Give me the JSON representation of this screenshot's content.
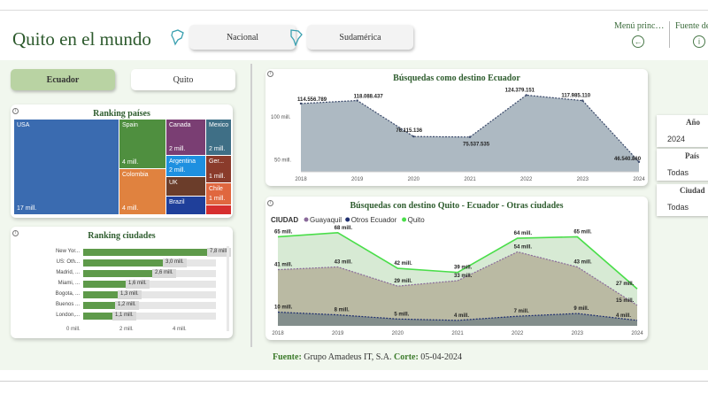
{
  "header": {
    "title": "Quito en el mundo",
    "nav_nacional": "Nacional",
    "nav_sudamerica": "Sudamérica",
    "menu_principal": "Menú princ…",
    "fuente_link": "Fuente de",
    "icons": [
      "ecuador-map-icon",
      "southamerica-map-icon",
      "back-arrow-icon",
      "info-icon"
    ]
  },
  "toggles": {
    "ecuador": "Ecuador",
    "quito": "Quito"
  },
  "ranking_paises": {
    "title": "Ranking países",
    "items": [
      {
        "label": "USA",
        "value": "17 mill.",
        "color": "#3a6bb0"
      },
      {
        "label": "Spain",
        "value": "4 mill.",
        "color": "#4f8f3f"
      },
      {
        "label": "Colombia",
        "value": "4 mill.",
        "color": "#e0823f"
      },
      {
        "label": "Canada",
        "value": "2 mill.",
        "color": "#7a3e73"
      },
      {
        "label": "Mexico",
        "value": "2 mill.",
        "color": "#3f6f86"
      },
      {
        "label": "Argentina",
        "value": "2 mill.",
        "color": "#1e90e0"
      },
      {
        "label": "Ger...",
        "value": "1 mill.",
        "color": "#8a3b2b"
      },
      {
        "label": "UK",
        "value": "",
        "color": "#6b3d2a"
      },
      {
        "label": "Chile",
        "value": "1 mill.",
        "color": "#e0673f"
      },
      {
        "label": "Brazil",
        "value": "",
        "color": "#1f3f9a"
      },
      {
        "label": "",
        "value": "",
        "color": "#d62f2f"
      }
    ]
  },
  "ranking_ciudades": {
    "title": "Ranking ciudades",
    "rows": [
      {
        "name": "New Yor...",
        "value": 7.8,
        "label": "7,8 mill."
      },
      {
        "name": "US: Oth...",
        "value": 3.0,
        "label": "3,0 mill."
      },
      {
        "name": "Madrid, ...",
        "value": 2.6,
        "label": "2,6 mill."
      },
      {
        "name": "Miami, ...",
        "value": 1.6,
        "label": "1,6 mill."
      },
      {
        "name": "Bogota, ...",
        "value": 1.3,
        "label": "1,3 mill."
      },
      {
        "name": "Buenos ...",
        "value": 1.2,
        "label": "1,2 mill."
      },
      {
        "name": "London,...",
        "value": 1.1,
        "label": "1,1 mill."
      }
    ],
    "axis_ticks": [
      "0 mill.",
      "2 mill.",
      "4 mill."
    ]
  },
  "slicers": {
    "anio_label": "Año",
    "anio_value": "2024",
    "pais_label": "País",
    "pais_value": "Todas",
    "ciudad_label": "Ciudad",
    "ciudad_value": "Todas"
  },
  "footer": {
    "fuente_label": "Fuente:",
    "fuente_value": "Grupo Amadeus IT, S.A.",
    "corte_label": "Corte:",
    "corte_value": "05-04-2024"
  },
  "chart_data": [
    {
      "type": "area",
      "title": "Búsquedas como destino Ecuador",
      "x": [
        "2018",
        "2019",
        "2020",
        "2021",
        "2022",
        "2023",
        "2024"
      ],
      "values": [
        114556789,
        118088437,
        76115136,
        75537535,
        124379151,
        117985110,
        46540860
      ],
      "data_labels": [
        "114.556.789",
        "118.088.437",
        "76.115.136",
        "75.537.535",
        "124.379.151",
        "117.985.110",
        "46.540.860"
      ],
      "y_ticks": [
        "100 mill.",
        "50 mill."
      ],
      "ylim": [
        35000000,
        130000000
      ],
      "color": "#a9b5bf"
    },
    {
      "type": "area",
      "title": "Búsquedas con destino Quito - Ecuador - Otras ciudades",
      "legend_title": "CIUDAD",
      "x": [
        "2018",
        "2019",
        "2020",
        "2021",
        "2022",
        "2023",
        "2024"
      ],
      "series": [
        {
          "name": "Quito",
          "color": "#4ade4a",
          "values": [
            65,
            68,
            42,
            39,
            64,
            65,
            27
          ],
          "labels": [
            "65 mill.",
            "68 mill.",
            "42 mill.",
            "39 mill.",
            "64 mill.",
            "65 mill.",
            "27 mill."
          ]
        },
        {
          "name": "Guayaquil",
          "color": "#8a6a9a",
          "values": [
            41,
            43,
            29,
            33,
            54,
            43,
            15
          ],
          "labels": [
            "41 mill.",
            "43 mill.",
            "29 mill.",
            "33 mill.",
            "54 mill.",
            "43 mill.",
            "15 mill."
          ]
        },
        {
          "name": "Otros Ecuador",
          "color": "#1f2f6f",
          "values": [
            10,
            8,
            5,
            4,
            7,
            9,
            4
          ],
          "labels": [
            "10 mill.",
            "8 mill.",
            "5 mill.",
            "4 mill.",
            "7 mill.",
            "9 mill.",
            "4 mill."
          ]
        }
      ],
      "ylim": [
        0,
        75
      ]
    }
  ]
}
